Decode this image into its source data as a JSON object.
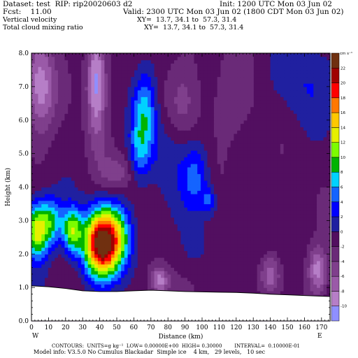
{
  "header": {
    "dataset": "Dataset: test  RIP: rip20020603 d2",
    "init": "Init: 1200 UTC Mon 03 Jun 02",
    "fcst": "Fcst:    11.00",
    "valid": "Valid: 2300 UTC Mon 03 Jun 02 (1800 CDT Mon 03 Jun 02)",
    "field1": "Vertical velocity",
    "field1_xy": "XY=  13.7, 34.1 to  57.3, 31.4",
    "field2": "Total cloud mixing ratio",
    "field2_xy": "XY=  13.7, 34.1 to  57.3, 31.4"
  },
  "chart_data": {
    "type": "heatmap",
    "xlabel": "Distance (km)",
    "ylabel": "Height (km)",
    "xlim": [
      0,
      175
    ],
    "ylim": [
      0,
      8
    ],
    "x_ticks": [
      0,
      10,
      20,
      30,
      40,
      50,
      60,
      70,
      80,
      90,
      100,
      110,
      120,
      130,
      140,
      150,
      160,
      170
    ],
    "y_ticks": [
      "0.0",
      "1.0",
      "2.0",
      "3.0",
      "4.0",
      "5.0",
      "6.0",
      "7.0",
      "8.0"
    ],
    "left_end_label": "W",
    "right_end_label": "E",
    "colorbar_unit": "cm s⁻¹",
    "colorbar_labels": [
      "-10",
      "-8",
      "-6",
      "-4",
      "-2",
      "0",
      "2",
      "4",
      "6",
      "8",
      "10",
      "12",
      "14",
      "16",
      "18",
      "20",
      "22"
    ],
    "colorbar_colors": [
      "#8f8fff",
      "#b67ec7",
      "#9a5aa8",
      "#7f3f8c",
      "#6a2a78",
      "#520f60",
      "#2020a0",
      "#0000ff",
      "#1464ff",
      "#00d2ff",
      "#00b400",
      "#7cfc00",
      "#e6f000",
      "#ffc800",
      "#ff7800",
      "#ff0000",
      "#a00000",
      "#703010"
    ],
    "terrain_km": [
      [
        0,
        1.05
      ],
      [
        10,
        1.02
      ],
      [
        20,
        0.97
      ],
      [
        30,
        0.9
      ],
      [
        40,
        0.88
      ],
      [
        50,
        0.88
      ],
      [
        60,
        0.9
      ],
      [
        70,
        0.92
      ],
      [
        80,
        0.9
      ],
      [
        90,
        0.88
      ],
      [
        100,
        0.87
      ],
      [
        110,
        0.86
      ],
      [
        120,
        0.85
      ],
      [
        130,
        0.83
      ],
      [
        140,
        0.8
      ],
      [
        150,
        0.78
      ],
      [
        160,
        0.76
      ],
      [
        170,
        0.74
      ],
      [
        175,
        0.73
      ]
    ],
    "centers": [
      {
        "x": 3,
        "y": 2.7,
        "sx": 5,
        "sy": 0.6,
        "v": 14
      },
      {
        "x": 12,
        "y": 3.0,
        "sx": 5,
        "sy": 0.5,
        "v": 8
      },
      {
        "x": 24,
        "y": 2.7,
        "sx": 4,
        "sy": 0.5,
        "v": 12
      },
      {
        "x": 40,
        "y": 2.3,
        "sx": 7,
        "sy": 0.7,
        "v": 22
      },
      {
        "x": 50,
        "y": 2.5,
        "sx": 7,
        "sy": 0.7,
        "v": 10
      },
      {
        "x": 66,
        "y": 6.2,
        "sx": 5,
        "sy": 0.9,
        "v": 8
      },
      {
        "x": 63,
        "y": 5.0,
        "sx": 4,
        "sy": 0.6,
        "v": 4
      },
      {
        "x": 96,
        "y": 4.3,
        "sx": 6,
        "sy": 0.8,
        "v": 6
      },
      {
        "x": 104,
        "y": 3.6,
        "sx": 3,
        "sy": 0.3,
        "v": 5
      },
      {
        "x": 80,
        "y": 5.0,
        "sx": 8,
        "sy": 0.8,
        "v": 3
      },
      {
        "x": 160,
        "y": 7.2,
        "sx": 12,
        "sy": 1.0,
        "v": 3
      },
      {
        "x": 95,
        "y": 2.2,
        "sx": 5,
        "sy": 0.4,
        "v": 2
      },
      {
        "x": 132,
        "y": 2.1,
        "sx": 5,
        "sy": 0.5,
        "v": 2
      },
      {
        "x": 38,
        "y": 7.2,
        "sx": 4,
        "sy": 1.2,
        "v": -10
      },
      {
        "x": 5,
        "y": 7.0,
        "sx": 6,
        "sy": 1.0,
        "v": -8
      },
      {
        "x": 50,
        "y": 4.4,
        "sx": 7,
        "sy": 0.4,
        "v": -4
      },
      {
        "x": 75,
        "y": 1.2,
        "sx": 4,
        "sy": 0.3,
        "v": -8
      },
      {
        "x": 90,
        "y": 6.5,
        "sx": 7,
        "sy": 1.0,
        "v": -3
      },
      {
        "x": 140,
        "y": 1.4,
        "sx": 4,
        "sy": 0.4,
        "v": -6
      },
      {
        "x": 168,
        "y": 1.5,
        "sx": 4,
        "sy": 0.5,
        "v": -8
      },
      {
        "x": 115,
        "y": 6.5,
        "sx": 10,
        "sy": 1.0,
        "v": -2
      }
    ]
  },
  "footer": {
    "line1": "CONTOURS:  UNITS=g kg⁻¹  LOW= 0.00000E+00  HIGH= 0.30000        INTERVAL=  0.10000E-01",
    "line2": "Model info: V3.5.0 No Cumulus Blackadar  Simple ice    4 km,   29 levels,   10 sec"
  }
}
